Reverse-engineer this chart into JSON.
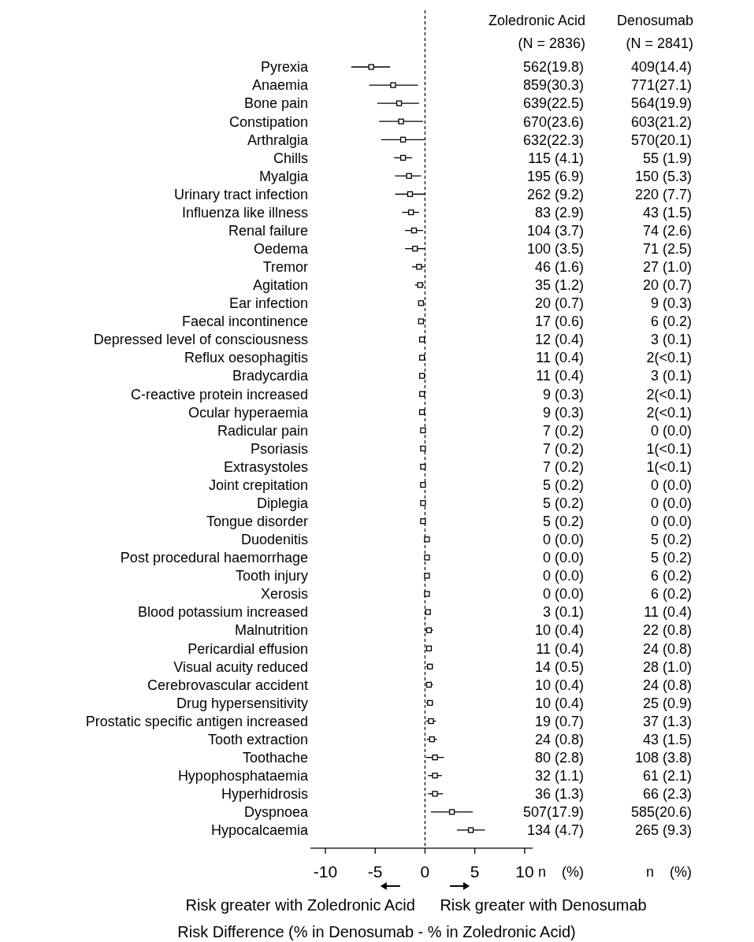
{
  "chart_data": [
    {
      "type": "scatter",
      "orientation": "horizontal",
      "marker": "square",
      "categories": [
        "Pyrexia",
        "Anaemia",
        "Bone pain",
        "Constipation",
        "Arthralgia",
        "Chills",
        "Myalgia",
        "Urinary tract infection",
        "Influenza like illness",
        "Renal failure",
        "Oedema",
        "Tremor",
        "Agitation",
        "Ear infection",
        "Faecal incontinence",
        "Depressed level of consciousness",
        "Reflux oesophagitis",
        "Bradycardia",
        "C-reactive protein increased",
        "Ocular hyperaemia",
        "Radicular pain",
        "Psoriasis",
        "Extrasystoles",
        "Joint crepitation",
        "Diplegia",
        "Tongue disorder",
        "Duodenitis",
        "Post procedural haemorrhage",
        "Tooth injury",
        "Xerosis",
        "Blood potassium increased",
        "Malnutrition",
        "Pericardial effusion",
        "Visual acuity reduced",
        "Cerebrovascular accident",
        "Drug hypersensitivity",
        "Prostatic specific antigen increased",
        "Tooth extraction",
        "Toothache",
        "Hypophosphataemia",
        "Hyperhidrosis",
        "Dyspnoea",
        "Hypocalcaemia"
      ],
      "values": [
        -5.4,
        -3.2,
        -2.6,
        -2.4,
        -2.2,
        -2.2,
        -1.6,
        -1.5,
        -1.4,
        -1.1,
        -1.0,
        -0.6,
        -0.5,
        -0.4,
        -0.4,
        -0.3,
        -0.3,
        -0.3,
        -0.3,
        -0.3,
        -0.2,
        -0.2,
        -0.2,
        -0.2,
        -0.2,
        -0.2,
        0.2,
        0.2,
        0.2,
        0.2,
        0.3,
        0.4,
        0.4,
        0.5,
        0.4,
        0.5,
        0.6,
        0.7,
        1.0,
        1.0,
        1.0,
        2.7,
        4.6
      ],
      "errors": [
        [
          -7.4,
          -3.5
        ],
        [
          -5.6,
          -0.7
        ],
        [
          -4.8,
          -0.6
        ],
        [
          -4.6,
          -0.2
        ],
        [
          -4.4,
          0
        ],
        [
          -3.1,
          -1.3
        ],
        [
          -3.0,
          -0.4
        ],
        [
          -3.0,
          0
        ],
        [
          -2.3,
          -0.6
        ],
        [
          -2.0,
          -0.2
        ],
        [
          -2.0,
          0
        ],
        [
          -1.3,
          0
        ],
        [
          -1.0,
          -0.1
        ],
        null,
        null,
        null,
        null,
        null,
        null,
        null,
        null,
        null,
        null,
        null,
        null,
        null,
        null,
        null,
        null,
        null,
        null,
        [
          0.0,
          0.8
        ],
        null,
        [
          0.1,
          0.8
        ],
        [
          0.1,
          0.8
        ],
        [
          0.1,
          0.8
        ],
        [
          0.1,
          1.1
        ],
        [
          0.2,
          1.2
        ],
        [
          0.1,
          1.9
        ],
        [
          0.3,
          1.7
        ],
        [
          0.3,
          1.8
        ],
        [
          0.6,
          4.8
        ],
        [
          3.2,
          6.0
        ]
      ],
      "color": "#000000",
      "xlim": [
        -11.5,
        10.8
      ],
      "xticks": [
        -10,
        -5,
        0,
        5,
        10
      ],
      "xlabel": "Risk Difference (% in Denosumab - % in Zoledronic Acid)",
      "ref_lines": [
        {
          "axis": "x",
          "value": 0,
          "line_style": "dashed"
        }
      ],
      "annotations": [
        "Risk greater with Zoledronic Acid",
        "Risk greater with Denosumab"
      ]
    },
    {
      "type": "other",
      "annotations": [
        "Zoledronic Acid",
        "Denosumab",
        "(N = 2836)",
        "(N = 2841)",
        "562(19.8)",
        "409(14.4)",
        "859(30.3)",
        "771(27.1)",
        "639(22.5)",
        "564(19.9)",
        "670(23.6)",
        "603(21.2)",
        "632(22.3)",
        "570(20.1)",
        "115 (4.1)",
        "55 (1.9)",
        "195 (6.9)",
        "150 (5.3)",
        "262 (9.2)",
        "220 (7.7)",
        "83 (2.9)",
        "43 (1.5)",
        "104 (3.7)",
        "74 (2.6)",
        "100 (3.5)",
        "71 (2.5)",
        "46 (1.6)",
        "27 (1.0)",
        "35 (1.2)",
        "20 (0.7)",
        "20 (0.7)",
        "9 (0.3)",
        "17 (0.6)",
        "6 (0.2)",
        "12 (0.4)",
        "3 (0.1)",
        "11 (0.4)",
        "2(<0.1)",
        "11 (0.4)",
        "3 (0.1)",
        "9 (0.3)",
        "2(<0.1)",
        "9 (0.3)",
        "2(<0.1)",
        "7 (0.2)",
        "0 (0.0)",
        "7 (0.2)",
        "1(<0.1)",
        "7 (0.2)",
        "1(<0.1)",
        "5 (0.2)",
        "0 (0.0)",
        "5 (0.2)",
        "0 (0.0)",
        "5 (0.2)",
        "0 (0.0)",
        "0 (0.0)",
        "5 (0.2)",
        "0 (0.0)",
        "5 (0.2)",
        "0 (0.0)",
        "6 (0.2)",
        "0 (0.0)",
        "6 (0.2)",
        "3 (0.1)",
        "11 (0.4)",
        "10 (0.4)",
        "22 (0.8)",
        "11 (0.4)",
        "24 (0.8)",
        "14 (0.5)",
        "28 (1.0)",
        "10 (0.4)",
        "24 (0.8)",
        "10 (0.4)",
        "25 (0.9)",
        "19 (0.7)",
        "37 (1.3)",
        "24 (0.8)",
        "43 (1.5)",
        "80 (2.8)",
        "108 (3.8)",
        "32 (1.1)",
        "61 (2.1)",
        "36 (1.3)",
        "66 (2.3)",
        "507(17.9)",
        "585(20.6)",
        "134 (4.7)",
        "265 (9.3)",
        "n    (%)",
        "n    (%)"
      ]
    }
  ]
}
